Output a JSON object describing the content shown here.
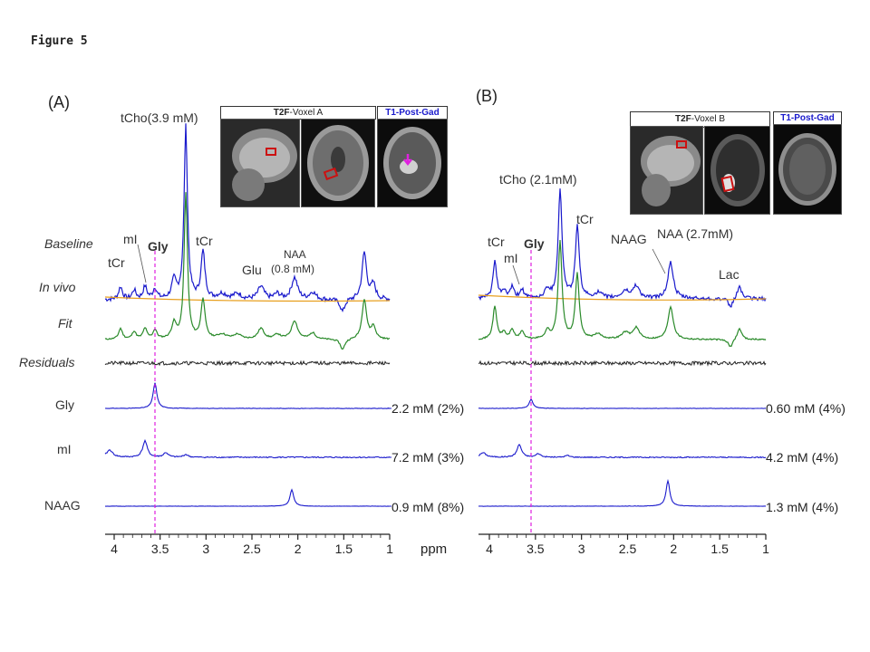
{
  "figure_title": "Figure 5",
  "panels": [
    {
      "letter": "(A)",
      "images": {
        "t2f_bold": "T2F",
        "t2f_rest": "-Voxel  A",
        "t1": "T1-Post-Gad"
      },
      "peaks": {
        "tcho": "tCho(3.9  mM)",
        "tcr_left": "tCr",
        "mi": "mI",
        "gly": "Gly",
        "tcr_right": "tCr",
        "glu": "Glu",
        "naa_1": "NAA",
        "naa_2": "(0.8 mM)"
      },
      "concentrations": {
        "gly": "2.2 mM (2%)",
        "mi": "7.2 mM (3%)",
        "naag": "0.9 mM (8%)"
      },
      "ticks": [
        "4",
        "3.5",
        "3",
        "2.5",
        "2",
        "1.5",
        "1"
      ],
      "unit": "ppm"
    },
    {
      "letter": "(B)",
      "images": {
        "t2f_bold": "T2F",
        "t2f_rest": "-Voxel  B",
        "t1": "T1-Post-Gad"
      },
      "peaks": {
        "tcho": "tCho  (2.1mM)",
        "tcr_top": "tCr",
        "tcr_left": "tCr",
        "gly": "Gly",
        "mi": "mI",
        "naag": "NAAG",
        "naa": "NAA  (2.7mM)",
        "lac": "Lac"
      },
      "concentrations": {
        "gly": "0.60 mM  (4%)",
        "mi": "4.2 mM  (4%)",
        "naag": "1.3 mM  (4%)"
      },
      "ticks": [
        "4",
        "3.5",
        "3",
        "2.5",
        "2",
        "1.5",
        "1"
      ]
    }
  ],
  "row_labels": {
    "baseline": "Baseline",
    "in_vivo": "In vivo",
    "fit": "Fit",
    "residuals": "Residuals",
    "gly": "Gly",
    "mi": "mI",
    "naag": "NAAG"
  },
  "colors": {
    "blue": "#1a1acc",
    "green": "#2a8a2a",
    "baseline": "#e8a020",
    "marker": "#e020e0",
    "residual": "#222222",
    "roi": "#cc1111"
  }
}
